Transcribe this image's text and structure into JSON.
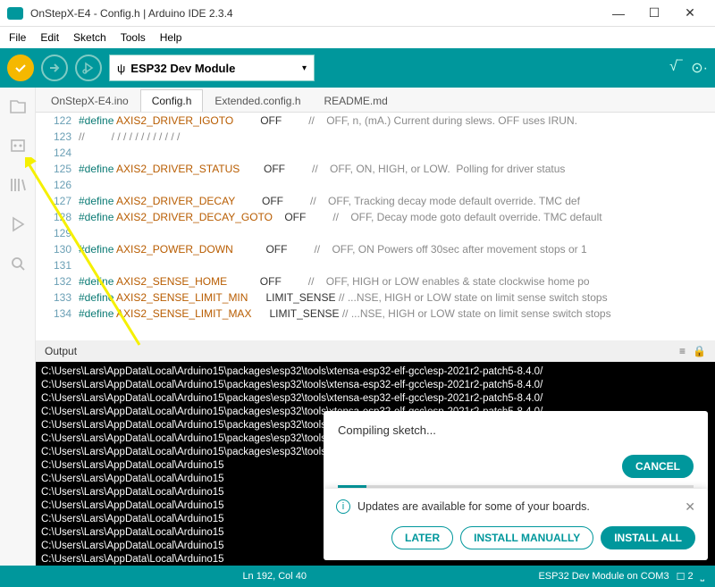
{
  "window": {
    "title": "OnStepX-E4 - Config.h | Arduino IDE 2.3.4"
  },
  "menu": {
    "items": [
      "File",
      "Edit",
      "Sketch",
      "Tools",
      "Help"
    ]
  },
  "toolbar": {
    "board_label": "ESP32 Dev Module",
    "usb_glyph": "ψ"
  },
  "tabs": {
    "items": [
      "OnStepX-E4.ino",
      "Config.h",
      "Extended.config.h",
      "README.md"
    ],
    "active_index": 1
  },
  "code": {
    "lines": [
      {
        "n": 122,
        "kw": "#define",
        "macro": "AXIS2_DRIVER_IGOTO",
        "val": "OFF",
        "cmt": "//    OFF, n, (mA.) Current during slews. OFF uses IRUN."
      },
      {
        "n": 123,
        "kw": "",
        "macro": "",
        "val": "",
        "cmt": "//         / / / / / / / / / / / /"
      },
      {
        "n": 124,
        "kw": "",
        "macro": "",
        "val": "",
        "cmt": ""
      },
      {
        "n": 125,
        "kw": "#define",
        "macro": "AXIS2_DRIVER_STATUS",
        "val": "OFF",
        "cmt": "//    OFF, ON, HIGH, or LOW.  Polling for driver status"
      },
      {
        "n": 126,
        "kw": "",
        "macro": "",
        "val": "",
        "cmt": ""
      },
      {
        "n": 127,
        "kw": "#define",
        "macro": "AXIS2_DRIVER_DECAY",
        "val": "OFF",
        "cmt": "//    OFF, Tracking decay mode default override. TMC def"
      },
      {
        "n": 128,
        "kw": "#define",
        "macro": "AXIS2_DRIVER_DECAY_GOTO",
        "val": "OFF",
        "cmt": "//    OFF, Decay mode goto default override. TMC default"
      },
      {
        "n": 129,
        "kw": "",
        "macro": "",
        "val": "",
        "cmt": ""
      },
      {
        "n": 130,
        "kw": "#define",
        "macro": "AXIS2_POWER_DOWN",
        "val": "OFF",
        "cmt": "//    OFF, ON Powers off 30sec after movement stops or 1"
      },
      {
        "n": 131,
        "kw": "",
        "macro": "",
        "val": "",
        "cmt": ""
      },
      {
        "n": 132,
        "kw": "#define",
        "macro": "AXIS2_SENSE_HOME",
        "val": "OFF",
        "cmt": "//    OFF, HIGH or LOW enables & state clockwise home po"
      },
      {
        "n": 133,
        "kw": "#define",
        "macro": "AXIS2_SENSE_LIMIT_MIN",
        "val": "LIMIT_SENSE",
        "cmt": "// ...NSE, HIGH or LOW state on limit sense switch stops"
      },
      {
        "n": 134,
        "kw": "#define",
        "macro": "AXIS2_SENSE_LIMIT_MAX",
        "val": "LIMIT_SENSE",
        "cmt": "// ...NSE, HIGH or LOW state on limit sense switch stops"
      }
    ],
    "val_col": 35
  },
  "output": {
    "label": "Output",
    "path_prefix": "C:\\Users\\Lars\\AppData\\Local\\Arduino15\\packages\\esp32\\tools\\xtensa-esp32-elf-gcc\\esp-2021r2-patch5-8.4.0/",
    "short_prefix": "C:\\Users\\Lars\\AppData\\Local\\Arduino15",
    "full_lines": 7,
    "short_lines": 8
  },
  "progress_modal": {
    "message": "Compiling sketch...",
    "cancel": "CANCEL"
  },
  "updates_modal": {
    "message": "Updates are available for some of your boards.",
    "later": "LATER",
    "manual": "INSTALL MANUALLY",
    "install_all": "INSTALL ALL"
  },
  "status": {
    "center": "Ln 192, Col 40",
    "board": "ESP32 Dev Module on COM3",
    "notif_count": "2"
  },
  "colors": {
    "teal": "#00979c",
    "accent_yellow": "#f5b800",
    "keyword": "#0a7a74",
    "macro": "#b85c00",
    "comment": "#8a8a8a",
    "output_bg": "#000000",
    "output_fg": "#ffffff"
  }
}
